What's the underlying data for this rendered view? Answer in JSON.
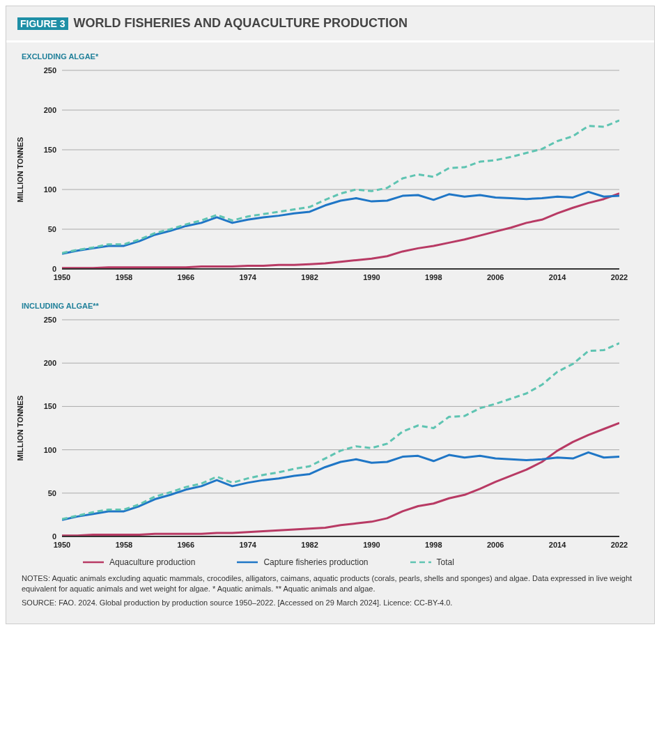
{
  "chart_data": [
    {
      "type": "line",
      "title": "WORLD FISHERIES AND AQUACULTURE PRODUCTION",
      "subtitle": "EXCLUDING ALGAE*",
      "ylabel": "MILLION TONNES",
      "annotations": [
        "FIGURE 3"
      ],
      "x": [
        1950,
        1952,
        1954,
        1956,
        1958,
        1960,
        1962,
        1964,
        1966,
        1968,
        1970,
        1972,
        1974,
        1976,
        1978,
        1980,
        1982,
        1984,
        1986,
        1988,
        1990,
        1992,
        1994,
        1996,
        1998,
        2000,
        2002,
        2004,
        2006,
        2008,
        2010,
        2012,
        2014,
        2016,
        2018,
        2020,
        2022
      ],
      "series": [
        {
          "color": "#b83a64",
          "values": [
            1,
            1,
            1,
            2,
            2,
            2,
            2,
            2,
            2,
            3,
            3,
            3,
            4,
            4,
            5,
            5,
            6,
            7,
            9,
            11,
            13,
            16,
            22,
            26,
            29,
            33,
            37,
            42,
            47,
            52,
            58,
            62,
            70,
            77,
            83,
            88,
            95
          ]
        },
        {
          "color": "#1f76c6",
          "values": [
            19,
            23,
            26,
            29,
            29,
            35,
            43,
            48,
            54,
            58,
            65,
            58,
            62,
            65,
            67,
            70,
            72,
            80,
            86,
            89,
            85,
            86,
            92,
            93,
            87,
            94,
            91,
            93,
            90,
            89,
            88,
            89,
            91,
            90,
            97,
            91,
            92
          ]
        },
        {
          "color": "#5fc4b2",
          "line_style": "dashed",
          "values": [
            20,
            24,
            27,
            31,
            31,
            37,
            45,
            50,
            56,
            61,
            68,
            61,
            66,
            69,
            72,
            75,
            78,
            87,
            95,
            100,
            98,
            102,
            114,
            119,
            116,
            127,
            128,
            135,
            137,
            141,
            146,
            151,
            161,
            167,
            180,
            179,
            187
          ]
        }
      ],
      "xlim": [
        1950,
        2022
      ],
      "xticks": [
        1950,
        1958,
        1966,
        1974,
        1982,
        1990,
        1998,
        2006,
        2014,
        2022
      ],
      "ylim": [
        0,
        250
      ],
      "yticks": [
        0,
        50,
        100,
        150,
        200,
        250
      ],
      "grid": "y",
      "legend": false
    },
    {
      "type": "line",
      "subtitle": "INCLUDING ALGAE**",
      "ylabel": "MILLION TONNES",
      "annotations": [
        "NOTES: Aquatic animals excluding aquatic mammals, crocodiles, alligators, caimans, aquatic products (corals, pearls, shells and sponges) and algae. Data expressed in live weight equivalent for aquatic animals and wet weight for algae. * Aquatic animals. ** Aquatic animals and algae.",
        "SOURCE: FAO. 2024. Global production by production source 1950–2022. [Accessed on 29 March 2024]. Licence: CC-BY-4.0."
      ],
      "x": [
        1950,
        1952,
        1954,
        1956,
        1958,
        1960,
        1962,
        1964,
        1966,
        1968,
        1970,
        1972,
        1974,
        1976,
        1978,
        1980,
        1982,
        1984,
        1986,
        1988,
        1990,
        1992,
        1994,
        1996,
        1998,
        2000,
        2002,
        2004,
        2006,
        2008,
        2010,
        2012,
        2014,
        2016,
        2018,
        2020,
        2022
      ],
      "series": [
        {
          "name": "Aquaculture production",
          "color": "#b83a64",
          "values": [
            1,
            1,
            2,
            2,
            2,
            2,
            3,
            3,
            3,
            3,
            4,
            4,
            5,
            6,
            7,
            8,
            9,
            10,
            13,
            15,
            17,
            21,
            29,
            35,
            38,
            44,
            48,
            55,
            63,
            70,
            77,
            86,
            99,
            109,
            117,
            124,
            131
          ]
        },
        {
          "name": "Capture fisheries production",
          "color": "#1f76c6",
          "values": [
            19,
            23,
            26,
            29,
            29,
            35,
            43,
            48,
            54,
            58,
            65,
            58,
            62,
            65,
            67,
            70,
            72,
            80,
            86,
            89,
            85,
            86,
            92,
            93,
            87,
            94,
            91,
            93,
            90,
            89,
            88,
            89,
            91,
            90,
            97,
            91,
            92
          ]
        },
        {
          "name": "Total",
          "color": "#5fc4b2",
          "line_style": "dashed",
          "values": [
            20,
            24,
            28,
            31,
            31,
            37,
            46,
            51,
            57,
            61,
            69,
            62,
            67,
            71,
            74,
            78,
            81,
            90,
            99,
            104,
            102,
            107,
            121,
            128,
            125,
            138,
            139,
            148,
            153,
            159,
            165,
            175,
            190,
            199,
            214,
            215,
            223
          ]
        }
      ],
      "xlim": [
        1950,
        2022
      ],
      "xticks": [
        1950,
        1958,
        1966,
        1974,
        1982,
        1990,
        1998,
        2006,
        2014,
        2022
      ],
      "ylim": [
        0,
        250
      ],
      "yticks": [
        0,
        50,
        100,
        150,
        200,
        250
      ],
      "grid": "y",
      "legend": "bottom"
    }
  ]
}
